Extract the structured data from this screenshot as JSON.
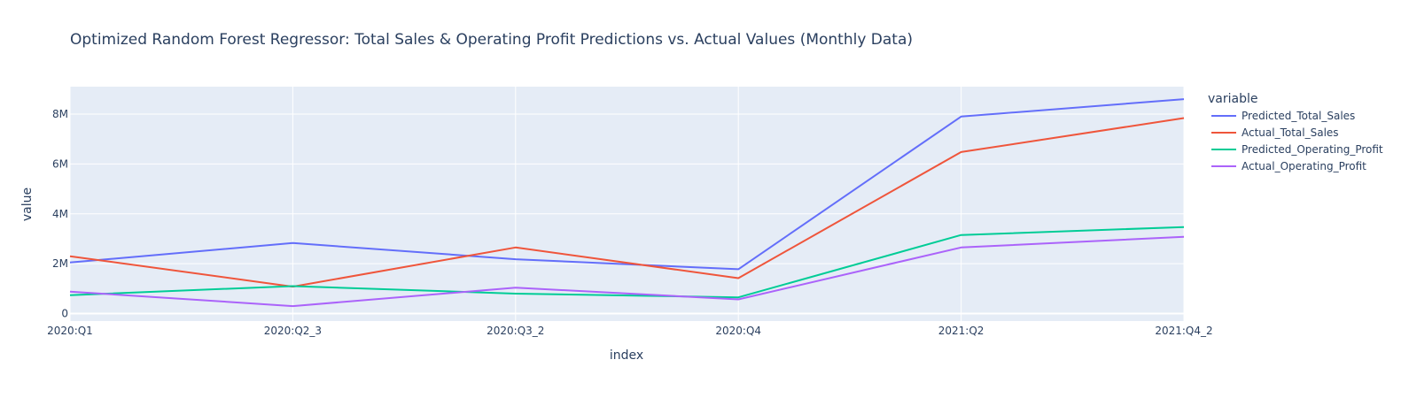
{
  "chart_data": {
    "type": "line",
    "title": "Optimized Random Forest Regressor: Total Sales & Operating Profit Predictions vs. Actual Values (Monthly Data)",
    "xlabel": "index",
    "ylabel": "value",
    "categories": [
      "2020:Q1",
      "2020:Q2_3",
      "2020:Q3_2",
      "2020:Q4",
      "2021:Q2",
      "2021:Q4_2"
    ],
    "ylim": [
      -300000,
      9100000
    ],
    "yticks": [
      0,
      2000000,
      4000000,
      6000000,
      8000000
    ],
    "ytick_labels": [
      "0",
      "2M",
      "4M",
      "6M",
      "8M"
    ],
    "grid": true,
    "legend_title": "variable",
    "legend_position": "right",
    "series": [
      {
        "name": "Predicted_Total_Sales",
        "color": "#636efa",
        "values": [
          2050000,
          2830000,
          2180000,
          1780000,
          7900000,
          8600000
        ]
      },
      {
        "name": "Actual_Total_Sales",
        "color": "#ef553b",
        "values": [
          2300000,
          1080000,
          2650000,
          1420000,
          6480000,
          7840000
        ]
      },
      {
        "name": "Predicted_Operating_Profit",
        "color": "#00cc96",
        "values": [
          740000,
          1100000,
          800000,
          650000,
          3150000,
          3470000
        ]
      },
      {
        "name": "Actual_Operating_Profit",
        "color": "#ab63fa",
        "values": [
          880000,
          300000,
          1040000,
          570000,
          2650000,
          3080000
        ]
      }
    ]
  }
}
